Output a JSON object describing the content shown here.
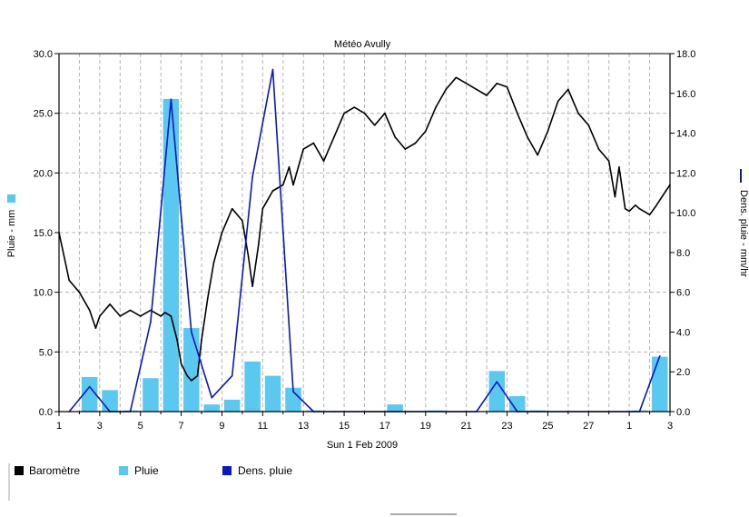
{
  "chart_data": {
    "type": "bar+line",
    "title": "Météo Avully",
    "xlabel": "Sun 1 Feb 2009",
    "ylabel_left": "Pluie - mm",
    "ylabel_right": "Dens. pluie - mm/hr",
    "ylim_left": [
      0,
      30
    ],
    "ylim_right": [
      0,
      18
    ],
    "xlim": [
      1,
      31
    ],
    "x_ticks": [
      "1",
      "3",
      "5",
      "7",
      "9",
      "11",
      "13",
      "15",
      "17",
      "19",
      "21",
      "23",
      "25",
      "27",
      "1",
      "3"
    ],
    "y_ticks_left": [
      "0.0",
      "5.0",
      "10.0",
      "15.0",
      "20.0",
      "25.0",
      "30.0"
    ],
    "y_ticks_right": [
      "0.0",
      "2.0",
      "4.0",
      "6.0",
      "8.0",
      "10.0",
      "12.0",
      "14.0",
      "16.0",
      "18.0"
    ],
    "grid": true,
    "legend_position": "bottom-left",
    "colors": {
      "barometre": "#000000",
      "pluie": "#5bc8f0",
      "dens_pluie": "#0a18c0",
      "grid": "#b4b4b4"
    },
    "series": [
      {
        "name": "Baromètre",
        "kind": "line",
        "axis": "left",
        "x": [
          1,
          1.5,
          2,
          2.5,
          2.8,
          3,
          3.5,
          4,
          4.5,
          5,
          5.5,
          6,
          6.2,
          6.5,
          6.8,
          7,
          7.3,
          7.5,
          7.8,
          8,
          8.3,
          8.6,
          9,
          9.5,
          10,
          10.3,
          10.5,
          10.8,
          11,
          11.5,
          12,
          12.3,
          12.5,
          13,
          13.5,
          14,
          14.5,
          15,
          15.5,
          16,
          16.5,
          17,
          17.5,
          18,
          18.5,
          19,
          19.5,
          20,
          20.5,
          21,
          21.5,
          22,
          22.5,
          23,
          23.5,
          24,
          24.5,
          25,
          25.5,
          26,
          26.5,
          27,
          27.5,
          28,
          28.3,
          28.5,
          28.8,
          29,
          29.3,
          29.5,
          30,
          30.3,
          30.8,
          31
        ],
        "values": [
          15,
          11,
          10,
          8.5,
          7,
          8,
          9,
          8,
          8.5,
          8,
          8.5,
          8,
          8.3,
          8,
          6,
          4,
          3,
          2.6,
          3,
          6,
          9.5,
          12.5,
          15,
          17,
          16,
          13,
          10.5,
          14,
          17,
          18.5,
          19,
          20.5,
          19,
          22,
          22.5,
          21,
          23,
          25,
          25.5,
          25,
          24,
          25,
          23,
          22,
          22.5,
          23.5,
          25.5,
          27,
          28,
          27.5,
          27,
          26.5,
          27.5,
          27.2,
          25,
          23,
          21.5,
          23.5,
          26,
          27,
          25,
          24,
          22,
          21,
          18,
          20.5,
          17,
          16.8,
          17.3,
          17,
          16.5,
          17.2,
          18.5,
          19
        ]
      },
      {
        "name": "Pluie",
        "kind": "bar",
        "axis": "left",
        "x": [
          2.5,
          3.5,
          4.5,
          5.5,
          6.5,
          7.5,
          8.5,
          9.5,
          10.5,
          11.5,
          12.5,
          13.5,
          17.5,
          19.5,
          22.5,
          23.5,
          24.5,
          29.5,
          30.5
        ],
        "values": [
          2.9,
          1.8,
          0.1,
          2.8,
          26.2,
          7.0,
          0.6,
          1.0,
          4.2,
          3.0,
          2.0,
          0.1,
          0.6,
          0.1,
          3.4,
          1.3,
          0.1,
          0.1,
          4.6
        ]
      },
      {
        "name": "Dens. pluie",
        "kind": "line",
        "axis": "right",
        "x": [
          1.5,
          2.5,
          3.5,
          4,
          4.5,
          5.5,
          6.5,
          7.5,
          8.5,
          9.5,
          10.5,
          11.5,
          12.5,
          13.5,
          14.5,
          21.5,
          22.5,
          23.5,
          24.5,
          29.5,
          30.5
        ],
        "values": [
          0,
          1.25,
          0,
          0,
          0,
          4.5,
          15.7,
          4.0,
          0.7,
          1.8,
          11.8,
          17.2,
          1.0,
          0,
          0,
          0,
          1.5,
          0,
          0,
          0,
          2.8
        ]
      }
    ]
  }
}
